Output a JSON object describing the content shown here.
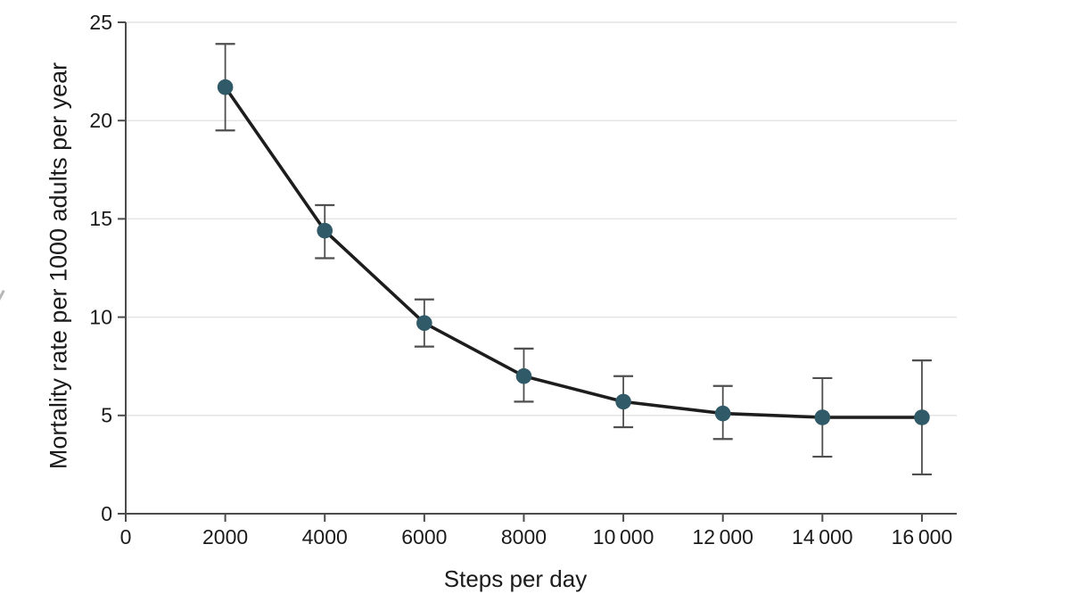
{
  "figure": {
    "background": "#ffffff"
  },
  "chart_data": {
    "type": "line",
    "title": "",
    "xlabel": "Steps per day",
    "ylabel": "Mortality rate per 1000 adults per year",
    "x": [
      2000,
      4000,
      6000,
      8000,
      10000,
      12000,
      14000,
      16000
    ],
    "series": [
      {
        "name": "Mortality rate",
        "values": [
          21.7,
          14.4,
          9.7,
          7.0,
          5.7,
          5.1,
          4.9,
          4.9
        ],
        "ci_low": [
          19.5,
          13.0,
          8.5,
          5.7,
          4.4,
          3.8,
          2.9,
          2.0
        ],
        "ci_high": [
          23.9,
          15.7,
          10.9,
          8.4,
          7.0,
          6.5,
          6.9,
          7.8
        ]
      }
    ],
    "xlim": [
      0,
      16700
    ],
    "ylim": [
      0,
      25
    ],
    "x_ticks": [
      0,
      2000,
      4000,
      6000,
      8000,
      10000,
      12000,
      14000,
      16000
    ],
    "x_tick_labels": [
      "0",
      "2000",
      "4000",
      "6000",
      "8000",
      "10 000",
      "12 000",
      "14 000",
      "16 000"
    ],
    "y_ticks": [
      0,
      5,
      10,
      15,
      20,
      25
    ],
    "y_tick_labels": [
      "0",
      "5",
      "10",
      "15",
      "20",
      "25"
    ],
    "grid": "horizontal",
    "legend": "none",
    "colors": {
      "point_fill": "#305a67",
      "line": "#1d1d1d",
      "error_bar": "#4f4f4f",
      "gridline": "#e4e4e4",
      "axis": "#4c4c4c",
      "tick_text": "#1b1b1b"
    }
  }
}
